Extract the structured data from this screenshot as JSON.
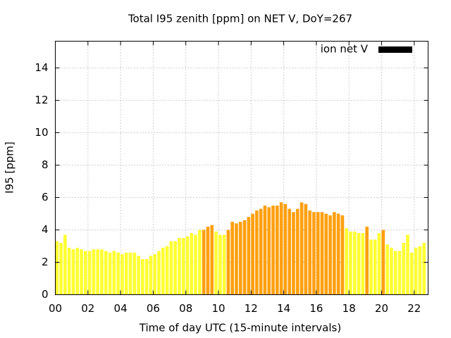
{
  "chart_data": {
    "type": "bar",
    "title": "Total I95 zenith [ppm] on NET V, DoY=267",
    "xlabel": "Time of day UTC (15-minute intervals)",
    "ylabel": "I95 [ppm]",
    "legend": {
      "label": "ion net V",
      "color": "#000000",
      "position": "top-right"
    },
    "x": [
      0,
      0.25,
      0.5,
      0.75,
      1,
      1.25,
      1.5,
      1.75,
      2,
      2.25,
      2.5,
      2.75,
      3,
      3.25,
      3.5,
      3.75,
      4,
      4.25,
      4.5,
      4.75,
      5,
      5.25,
      5.5,
      5.75,
      6,
      6.25,
      6.5,
      6.75,
      7,
      7.25,
      7.5,
      7.75,
      8,
      8.25,
      8.5,
      8.75,
      9,
      9.25,
      9.5,
      9.75,
      10,
      10.25,
      10.5,
      10.75,
      11,
      11.25,
      11.5,
      11.75,
      12,
      12.25,
      12.5,
      12.75,
      13,
      13.25,
      13.5,
      13.75,
      14,
      14.25,
      14.5,
      14.75,
      15,
      15.25,
      15.5,
      15.75,
      16,
      16.25,
      16.5,
      16.75,
      17,
      17.25,
      17.5,
      17.75,
      18,
      18.25,
      18.5,
      18.75,
      19,
      19.25,
      19.5,
      19.75,
      20,
      20.25,
      20.5,
      20.75,
      21,
      21.25,
      21.5,
      21.75,
      22,
      22.25,
      22.5
    ],
    "values": [
      3.3,
      3.2,
      3.7,
      2.9,
      2.8,
      2.9,
      2.8,
      2.7,
      2.7,
      2.8,
      2.8,
      2.8,
      2.7,
      2.6,
      2.7,
      2.6,
      2.5,
      2.6,
      2.6,
      2.6,
      2.4,
      2.2,
      2.2,
      2.4,
      2.5,
      2.7,
      2.9,
      3.0,
      3.3,
      3.3,
      3.5,
      3.5,
      3.6,
      3.8,
      3.7,
      4.0,
      4.0,
      4.2,
      4.3,
      3.9,
      3.7,
      3.7,
      4.0,
      4.5,
      4.4,
      4.5,
      4.6,
      4.8,
      5.0,
      5.2,
      5.3,
      5.5,
      5.4,
      5.5,
      5.5,
      5.7,
      5.6,
      5.3,
      5.1,
      5.3,
      5.7,
      5.6,
      5.2,
      5.1,
      5.1,
      5.1,
      5.0,
      4.9,
      5.1,
      5.0,
      4.9,
      4.1,
      3.9,
      3.9,
      3.8,
      3.8,
      4.2,
      3.4,
      3.4,
      3.8,
      4.0,
      3.1,
      2.9,
      2.7,
      2.7,
      3.2,
      3.7,
      2.6,
      2.9,
      3.0,
      3.2
    ],
    "colors": [
      "#ffff33",
      "#ffff33",
      "#ffff33",
      "#ffff33",
      "#ffff33",
      "#ffff33",
      "#ffff33",
      "#ffff33",
      "#ffff33",
      "#ffff33",
      "#ffff33",
      "#ffff33",
      "#ffff33",
      "#ffff33",
      "#ffff33",
      "#ffff33",
      "#ffff33",
      "#ffff33",
      "#ffff33",
      "#ffff33",
      "#ffff33",
      "#ffff33",
      "#ffff33",
      "#ffff33",
      "#ffff33",
      "#ffff33",
      "#ffff33",
      "#ffff33",
      "#ffff33",
      "#ffff33",
      "#ffff33",
      "#ffff33",
      "#ffff33",
      "#ffff33",
      "#ffff33",
      "#ffff33",
      "#ffa010",
      "#ffa010",
      "#ffa010",
      "#ffff33",
      "#ffff33",
      "#ffff33",
      "#ffa010",
      "#ffa010",
      "#ffa010",
      "#ffa010",
      "#ffa010",
      "#ffa010",
      "#ffa010",
      "#ffa010",
      "#ffa010",
      "#ffa010",
      "#ffa010",
      "#ffa010",
      "#ffa010",
      "#ffa010",
      "#ffa010",
      "#ffa010",
      "#ffa010",
      "#ffa010",
      "#ffa010",
      "#ffa010",
      "#ffa010",
      "#ffa010",
      "#ffa010",
      "#ffa010",
      "#ffa010",
      "#ffa010",
      "#ffa010",
      "#ffa010",
      "#ffa010",
      "#ffff33",
      "#ffff33",
      "#ffff33",
      "#ffff33",
      "#ffff33",
      "#ffa010",
      "#ffff33",
      "#ffff33",
      "#ffff33",
      "#ffa010",
      "#ffff33",
      "#ffff33",
      "#ffff33",
      "#ffff33",
      "#ffff33",
      "#ffff33",
      "#ffff33",
      "#ffff33",
      "#ffff33",
      "#ffff33"
    ],
    "bar_width": 0.2,
    "xlim": [
      0,
      22.85
    ],
    "ylim": [
      0,
      15.65
    ],
    "xticks": [
      {
        "value": 0,
        "label": "00"
      },
      {
        "value": 2,
        "label": "02"
      },
      {
        "value": 4,
        "label": "04"
      },
      {
        "value": 6,
        "label": "06"
      },
      {
        "value": 8,
        "label": "08"
      },
      {
        "value": 10,
        "label": "10"
      },
      {
        "value": 12,
        "label": "12"
      },
      {
        "value": 14,
        "label": "14"
      },
      {
        "value": 16,
        "label": "16"
      },
      {
        "value": 18,
        "label": "18"
      },
      {
        "value": 20,
        "label": "20"
      },
      {
        "value": 22,
        "label": "22"
      }
    ],
    "yticks": [
      0,
      2,
      4,
      6,
      8,
      10,
      12,
      14
    ],
    "grid": true
  }
}
